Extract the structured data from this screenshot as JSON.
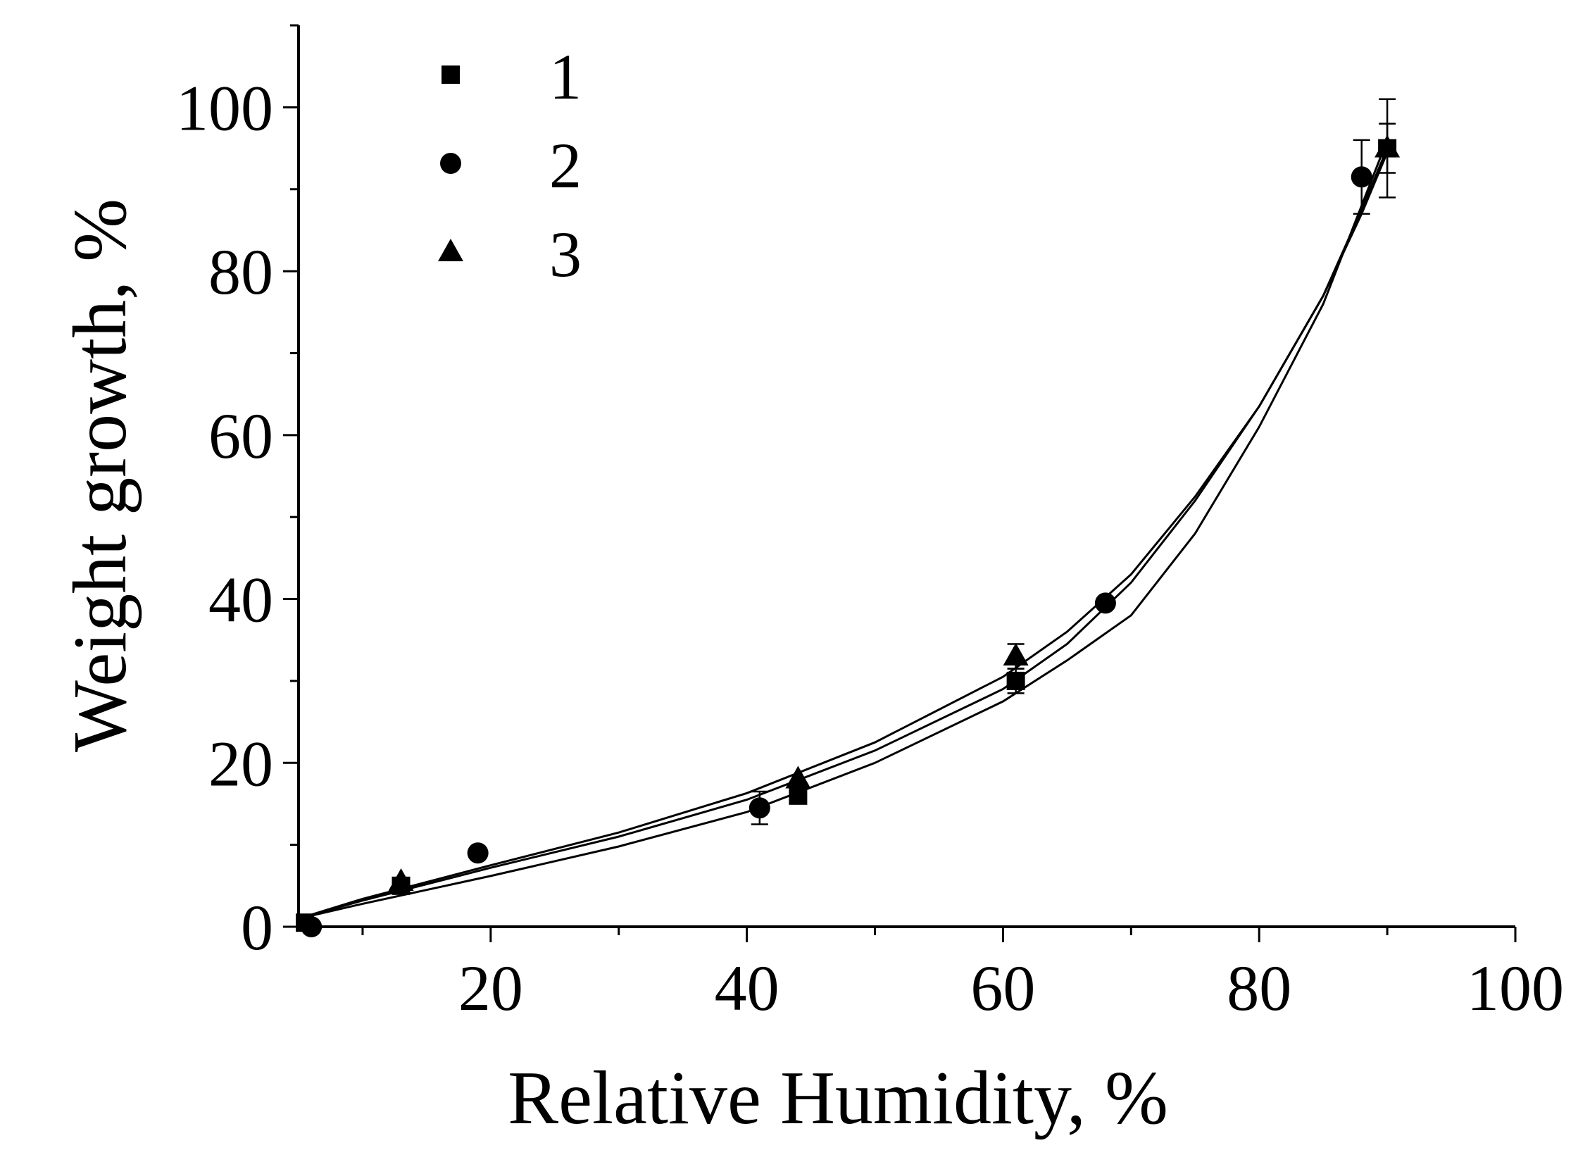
{
  "chart_data": {
    "type": "scatter",
    "xlabel": "Relative Humidity, %",
    "ylabel": "Weight growth, %",
    "xlim": [
      5,
      100
    ],
    "ylim": [
      0,
      110
    ],
    "x_ticks": [
      20,
      40,
      60,
      80,
      100
    ],
    "x_tick_labels": [
      "20",
      "40",
      "60",
      "80",
      "100"
    ],
    "y_ticks": [
      0,
      20,
      40,
      60,
      80,
      100
    ],
    "y_tick_labels": [
      "0",
      "20",
      "40",
      "60",
      "80",
      "100"
    ],
    "grid": false,
    "legend_position": "top-left",
    "series": [
      {
        "name": "1",
        "marker": "square",
        "points": [
          {
            "x": 5.5,
            "y": 0.5
          },
          {
            "x": 13,
            "y": 5
          },
          {
            "x": 44,
            "y": 16
          },
          {
            "x": 61,
            "y": 30,
            "err": 1.5
          },
          {
            "x": 90,
            "y": 95,
            "err": 6
          }
        ],
        "fit": [
          [
            5,
            1
          ],
          [
            10,
            3.2
          ],
          [
            20,
            7.2
          ],
          [
            30,
            11
          ],
          [
            40,
            15.5
          ],
          [
            50,
            21.5
          ],
          [
            60,
            29
          ],
          [
            65,
            34.5
          ],
          [
            70,
            42
          ],
          [
            75,
            52
          ],
          [
            80,
            63.5
          ],
          [
            85,
            77
          ],
          [
            88,
            87
          ],
          [
            90,
            94.5
          ]
        ]
      },
      {
        "name": "2",
        "marker": "circle",
        "points": [
          {
            "x": 6,
            "y": 0
          },
          {
            "x": 19,
            "y": 9
          },
          {
            "x": 41,
            "y": 14.5,
            "err": 2
          },
          {
            "x": 68,
            "y": 39.5
          },
          {
            "x": 88,
            "y": 91.5,
            "err": 4.5
          }
        ],
        "fit": [
          [
            5,
            1
          ],
          [
            10,
            2.8
          ],
          [
            20,
            6.2
          ],
          [
            30,
            9.8
          ],
          [
            40,
            14
          ],
          [
            50,
            20
          ],
          [
            60,
            27.5
          ],
          [
            65,
            32.5
          ],
          [
            70,
            38
          ],
          [
            75,
            48
          ],
          [
            80,
            61
          ],
          [
            85,
            76
          ],
          [
            88,
            88
          ],
          [
            90,
            96
          ]
        ]
      },
      {
        "name": "3",
        "marker": "triangle",
        "points": [
          {
            "x": 13,
            "y": 5.5
          },
          {
            "x": 44,
            "y": 18
          },
          {
            "x": 61,
            "y": 33,
            "err": 1.5
          },
          {
            "x": 90,
            "y": 95,
            "err": 3
          }
        ],
        "fit": [
          [
            5,
            1
          ],
          [
            10,
            3.4
          ],
          [
            20,
            7.5
          ],
          [
            30,
            11.5
          ],
          [
            40,
            16.3
          ],
          [
            50,
            22.5
          ],
          [
            60,
            30.5
          ],
          [
            65,
            36
          ],
          [
            70,
            43
          ],
          [
            75,
            52.5
          ],
          [
            80,
            63.5
          ],
          [
            85,
            77
          ],
          [
            88,
            87.5
          ],
          [
            90,
            95
          ]
        ]
      }
    ]
  }
}
